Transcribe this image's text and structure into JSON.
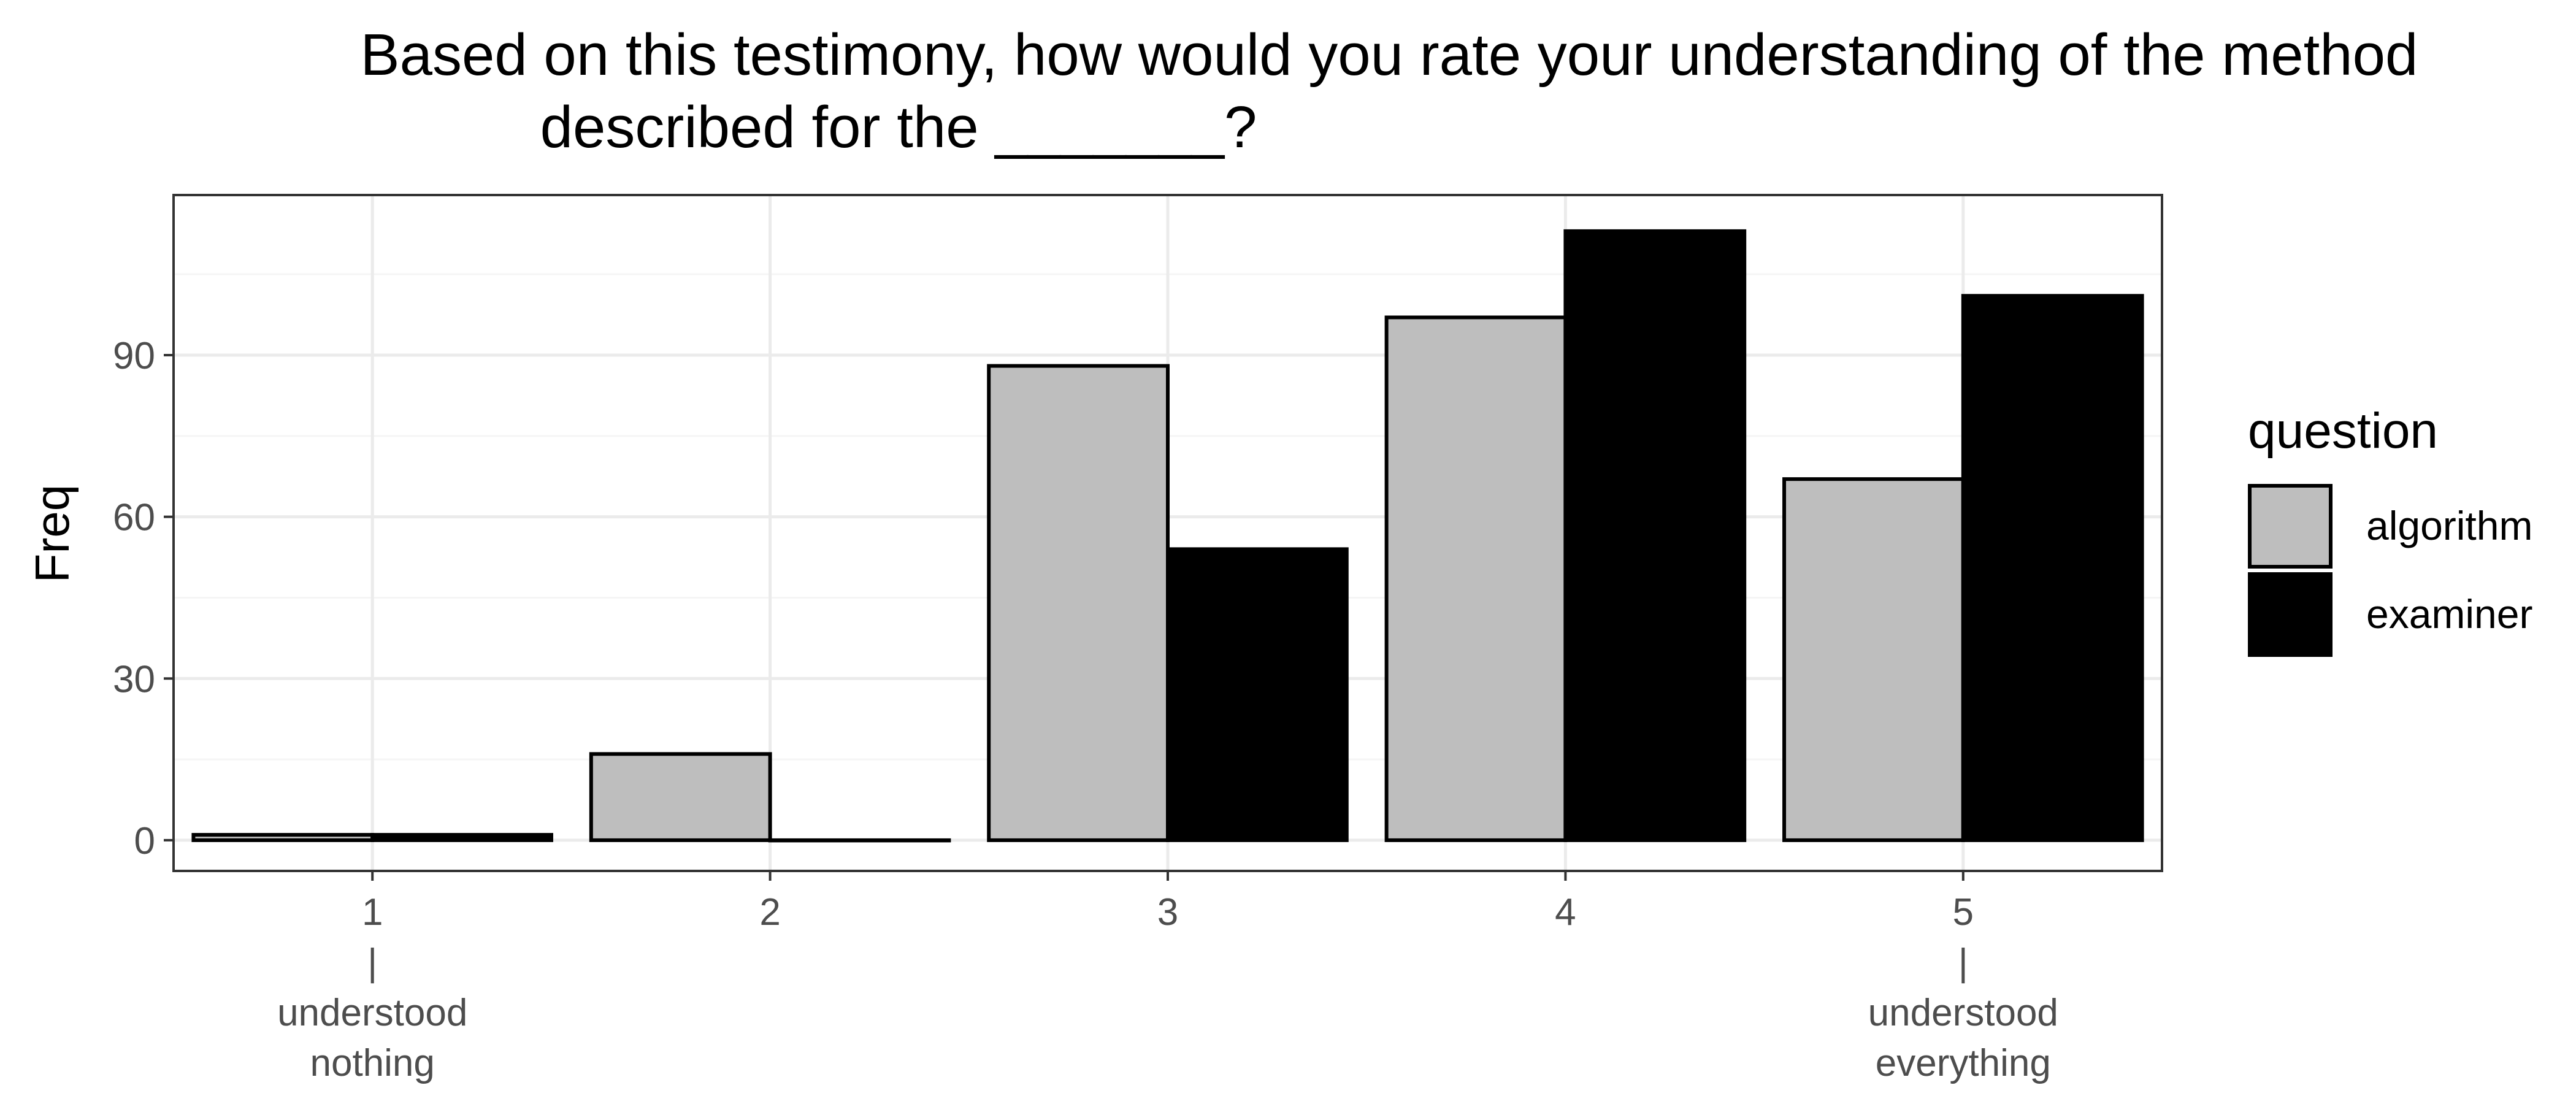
{
  "chart_data": {
    "type": "bar",
    "title": "Based on this testimony, how would you rate your understanding of the method",
    "title_line2": "described for the _______?",
    "ylabel": "Freq",
    "xlabel": "",
    "categories": [
      "1",
      "2",
      "3",
      "4",
      "5"
    ],
    "category_sublabels": {
      "1": [
        "|",
        "understood",
        "nothing"
      ],
      "5": [
        "|",
        "understood",
        "everything"
      ]
    },
    "series": [
      {
        "name": "algorithm",
        "color": "#bebebe",
        "values": [
          1,
          16,
          88,
          97,
          67
        ]
      },
      {
        "name": "examiner",
        "color": "#000000",
        "values": [
          1,
          0,
          54,
          113,
          101
        ]
      }
    ],
    "yticks": [
      0,
      30,
      60,
      90
    ],
    "ylim": [
      -5.7,
      119.7
    ],
    "grid": true,
    "legend": {
      "title": "question",
      "position": "right"
    },
    "theme": {
      "bar_outline": "#000000",
      "grid_major": "#ebebeb",
      "grid_minor": "#f5f5f5",
      "panel_border": "#333333"
    }
  }
}
